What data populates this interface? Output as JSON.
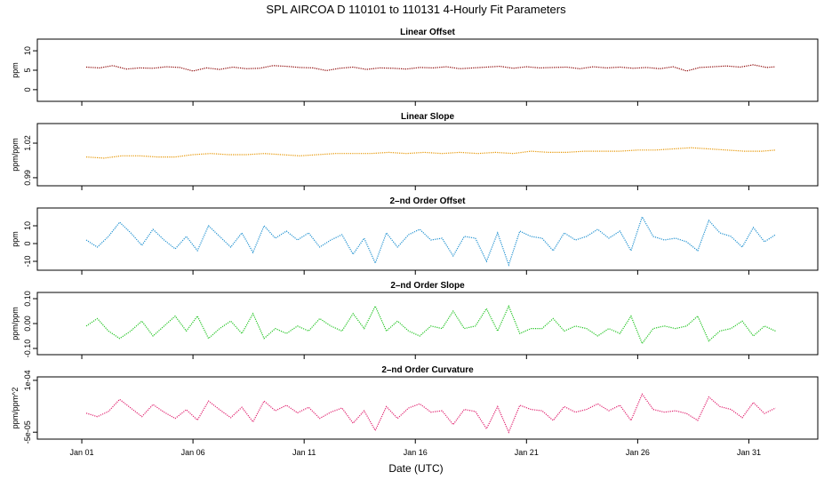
{
  "title": "SPL   AIRCOA D   110101 to 110131   4-Hourly Fit Parameters",
  "xlabel": "Date (UTC)",
  "x_tick_labels": [
    "Jan 01",
    "Jan 06",
    "Jan 11",
    "Jan 16",
    "Jan 21",
    "Jan 26",
    "Jan 31"
  ],
  "colors": {
    "series1": "#8b0000",
    "series2": "#e69500",
    "series3": "#1e90d0",
    "series4": "#22c422",
    "series5": "#e0206e"
  },
  "chart_data": [
    {
      "type": "line",
      "title": "Linear Offset",
      "ylabel": "ppm",
      "yticks": [
        "0",
        "5",
        "10"
      ],
      "ylim": [
        -3,
        13
      ],
      "x_range_days": [
        1.2,
        32.2
      ],
      "x": [
        1.2,
        1.8,
        2.4,
        3,
        3.6,
        4.2,
        4.8,
        5.4,
        6,
        6.6,
        7.2,
        7.8,
        8.4,
        9,
        9.6,
        10.2,
        10.8,
        11.4,
        12,
        12.6,
        13.2,
        13.8,
        14.4,
        15,
        15.6,
        16.2,
        16.8,
        17.4,
        18,
        18.6,
        19.2,
        19.8,
        20.4,
        21,
        21.6,
        22.2,
        22.8,
        23.4,
        24,
        24.6,
        25.2,
        25.8,
        26.4,
        27,
        27.6,
        28.2,
        28.8,
        29.4,
        30,
        30.6,
        31.2,
        31.8,
        32.2
      ],
      "values": [
        5.8,
        5.6,
        6.2,
        5.3,
        5.6,
        5.5,
        5.9,
        5.7,
        4.8,
        5.6,
        5.2,
        5.8,
        5.4,
        5.5,
        6.2,
        6,
        5.7,
        5.6,
        4.9,
        5.5,
        5.8,
        5.2,
        5.6,
        5.5,
        5.3,
        5.7,
        5.6,
        5.9,
        5.4,
        5.6,
        5.8,
        6,
        5.5,
        5.9,
        5.6,
        5.7,
        5.8,
        5.4,
        5.9,
        5.6,
        5.8,
        5.5,
        5.7,
        5.4,
        5.9,
        4.8,
        5.7,
        5.9,
        6.1,
        5.8,
        6.4,
        5.7,
        5.9
      ],
      "series_color": "#8b0000"
    },
    {
      "type": "line",
      "title": "Linear Slope",
      "ylabel": "ppm/ppm",
      "yticks": [
        "0.99",
        "1.02"
      ],
      "ylim": [
        0.983,
        1.037
      ],
      "x_range_days": [
        1.2,
        32.2
      ],
      "x": [
        1.2,
        2,
        2.8,
        3.6,
        4.4,
        5.2,
        6,
        6.8,
        7.6,
        8.4,
        9.2,
        10,
        10.8,
        11.6,
        12.4,
        13.2,
        14,
        14.8,
        15.6,
        16.4,
        17.2,
        18,
        18.8,
        19.6,
        20.4,
        21.2,
        22,
        22.8,
        23.6,
        24.4,
        25.2,
        26,
        26.8,
        27.6,
        28.4,
        29.2,
        30,
        30.8,
        31.6,
        32.2
      ],
      "values": [
        1.008,
        1.007,
        1.009,
        1.009,
        1.008,
        1.008,
        1.01,
        1.011,
        1.01,
        1.01,
        1.011,
        1.01,
        1.009,
        1.01,
        1.011,
        1.011,
        1.011,
        1.012,
        1.011,
        1.012,
        1.011,
        1.012,
        1.011,
        1.012,
        1.011,
        1.013,
        1.012,
        1.012,
        1.013,
        1.013,
        1.013,
        1.014,
        1.014,
        1.015,
        1.016,
        1.015,
        1.014,
        1.013,
        1.013,
        1.014
      ],
      "series_color": "#e69500"
    },
    {
      "type": "line",
      "title": "2–nd Order Offset",
      "ylabel": "ppm",
      "yticks": [
        "-10",
        "0",
        "10"
      ],
      "ylim": [
        -15,
        20
      ],
      "x_range_days": [
        1.2,
        32.2
      ],
      "x": [
        1.2,
        1.7,
        2.2,
        2.7,
        3.2,
        3.7,
        4.2,
        4.7,
        5.2,
        5.7,
        6.2,
        6.7,
        7.2,
        7.7,
        8.2,
        8.7,
        9.2,
        9.7,
        10.2,
        10.7,
        11.2,
        11.7,
        12.2,
        12.7,
        13.2,
        13.7,
        14.2,
        14.7,
        15.2,
        15.7,
        16.2,
        16.7,
        17.2,
        17.7,
        18.2,
        18.7,
        19.2,
        19.7,
        20.2,
        20.7,
        21.2,
        21.7,
        22.2,
        22.7,
        23.2,
        23.7,
        24.2,
        24.7,
        25.2,
        25.7,
        26.2,
        26.7,
        27.2,
        27.7,
        28.2,
        28.7,
        29.2,
        29.7,
        30.2,
        30.7,
        31.2,
        31.7,
        32.2
      ],
      "values": [
        2,
        -2,
        4,
        12,
        6,
        -1,
        8,
        2,
        -3,
        4,
        -4,
        10,
        4,
        -2,
        6,
        -5,
        10,
        3,
        7,
        2,
        6,
        -2,
        2,
        5,
        -6,
        3,
        -11,
        6,
        -2,
        5,
        8,
        2,
        3,
        -7,
        4,
        3,
        -10,
        6,
        -12,
        7,
        4,
        3,
        -4,
        6,
        2,
        4,
        8,
        3,
        7,
        -4,
        15,
        4,
        2,
        3,
        1,
        -4,
        13,
        6,
        4,
        -2,
        9,
        1,
        5
      ],
      "series_color": "#1e90d0"
    },
    {
      "type": "line",
      "title": "2–nd Order Slope",
      "ylabel": "ppm/ppm",
      "yticks": [
        "-0.10",
        "0.00",
        "0.10"
      ],
      "ylim": [
        -0.125,
        0.125
      ],
      "x_range_days": [
        1.2,
        32.2
      ],
      "x": [
        1.2,
        1.7,
        2.2,
        2.7,
        3.2,
        3.7,
        4.2,
        4.7,
        5.2,
        5.7,
        6.2,
        6.7,
        7.2,
        7.7,
        8.2,
        8.7,
        9.2,
        9.7,
        10.2,
        10.7,
        11.2,
        11.7,
        12.2,
        12.7,
        13.2,
        13.7,
        14.2,
        14.7,
        15.2,
        15.7,
        16.2,
        16.7,
        17.2,
        17.7,
        18.2,
        18.7,
        19.2,
        19.7,
        20.2,
        20.7,
        21.2,
        21.7,
        22.2,
        22.7,
        23.2,
        23.7,
        24.2,
        24.7,
        25.2,
        25.7,
        26.2,
        26.7,
        27.2,
        27.7,
        28.2,
        28.7,
        29.2,
        29.7,
        30.2,
        30.7,
        31.2,
        31.7,
        32.2
      ],
      "values": [
        -0.01,
        0.02,
        -0.03,
        -0.06,
        -0.03,
        0.01,
        -0.05,
        -0.01,
        0.03,
        -0.03,
        0.03,
        -0.06,
        -0.02,
        0.01,
        -0.04,
        0.04,
        -0.06,
        -0.02,
        -0.04,
        -0.01,
        -0.03,
        0.02,
        -0.01,
        -0.03,
        0.04,
        -0.02,
        0.07,
        -0.03,
        0.01,
        -0.03,
        -0.05,
        -0.01,
        -0.02,
        0.05,
        -0.02,
        -0.01,
        0.06,
        -0.03,
        0.07,
        -0.04,
        -0.02,
        -0.02,
        0.02,
        -0.03,
        -0.01,
        -0.02,
        -0.05,
        -0.02,
        -0.04,
        0.03,
        -0.08,
        -0.02,
        -0.01,
        -0.02,
        -0.01,
        0.03,
        -0.07,
        -0.03,
        -0.02,
        0.01,
        -0.05,
        -0.01,
        -0.03
      ],
      "series_color": "#22c422"
    },
    {
      "type": "line",
      "title": "2–nd Order Curvature",
      "ylabel": "ppm/ppm^2",
      "yticks": [
        "-5e-05",
        "1e-04"
      ],
      "ylim": [
        -7e-05,
        0.00011
      ],
      "x_range_days": [
        1.2,
        32.2
      ],
      "x": [
        1.2,
        1.7,
        2.2,
        2.7,
        3.2,
        3.7,
        4.2,
        4.7,
        5.2,
        5.7,
        6.2,
        6.7,
        7.2,
        7.7,
        8.2,
        8.7,
        9.2,
        9.7,
        10.2,
        10.7,
        11.2,
        11.7,
        12.2,
        12.7,
        13.2,
        13.7,
        14.2,
        14.7,
        15.2,
        15.7,
        16.2,
        16.7,
        17.2,
        17.7,
        18.2,
        18.7,
        19.2,
        19.7,
        20.2,
        20.7,
        21.2,
        21.7,
        22.2,
        22.7,
        23.2,
        23.7,
        24.2,
        24.7,
        25.2,
        25.7,
        26.2,
        26.7,
        27.2,
        27.7,
        28.2,
        28.7,
        29.2,
        29.7,
        30.2,
        30.7,
        31.2,
        31.7,
        32.2
      ],
      "values": [
        5e-06,
        -5e-06,
        1e-05,
        4.5e-05,
        2e-05,
        -5e-06,
        3e-05,
        8e-06,
        -1e-05,
        1.5e-05,
        -1.5e-05,
        4e-05,
        1.5e-05,
        -8e-06,
        2.2e-05,
        -2e-05,
        4e-05,
        1.2e-05,
        2.8e-05,
        6e-06,
        2.2e-05,
        -1e-05,
        8e-06,
        2e-05,
        -2.4e-05,
        1.2e-05,
        -4.5e-05,
        2.4e-05,
        -1e-05,
        2e-05,
        3.2e-05,
        8e-06,
        1.2e-05,
        -2.8e-05,
        1.6e-05,
        1e-05,
        -4e-05,
        2.4e-05,
        -5e-05,
        2.8e-05,
        1.6e-05,
        1.2e-05,
        -1.6e-05,
        2.4e-05,
        8e-06,
        1.6e-05,
        3.2e-05,
        1.2e-05,
        2.8e-05,
        -1.6e-05,
        6e-05,
        1.6e-05,
        8e-06,
        1.2e-05,
        4e-06,
        -1.6e-05,
        5.2e-05,
        2.4e-05,
        1.6e-05,
        -8e-06,
        3.6e-05,
        4e-06,
        2e-05
      ],
      "series_color": "#e0206e"
    }
  ]
}
